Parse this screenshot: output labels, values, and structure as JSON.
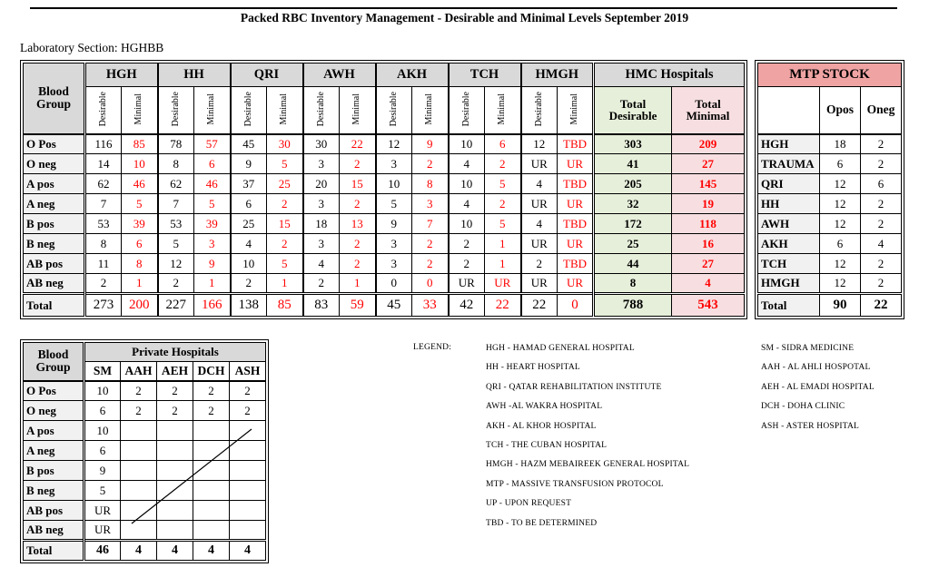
{
  "title": "Packed RBC Inventory Management - Desirable and Minimal Levels September 2019",
  "lab_section": "Laboratory Section: HGHBB",
  "colors": {
    "header_gray": "#d9d9d9",
    "row_label_gray": "#f1f1f1",
    "total_desirable_green": "#e6efda",
    "total_minimal_pink": "#f7dfe1",
    "mtp_header_salmon": "#efa3a3",
    "minimal_red": "#ff0000"
  },
  "main_table": {
    "corner_label": "Blood Group",
    "hospitals": [
      "HGH",
      "HH",
      "QRI",
      "AWH",
      "AKH",
      "TCH",
      "HMGH"
    ],
    "sub_headers": [
      "Desirable",
      "Minimal"
    ],
    "hmc_header": "HMC Hospitals",
    "hmc_columns": [
      "Total Desirable",
      "Total Minimal"
    ],
    "rows": [
      {
        "label": "O Pos",
        "values": [
          [
            "116",
            "85"
          ],
          [
            "78",
            "57"
          ],
          [
            "45",
            "30"
          ],
          [
            "30",
            "22"
          ],
          [
            "12",
            "9"
          ],
          [
            "10",
            "6"
          ],
          [
            "12",
            "TBD"
          ]
        ],
        "total_desirable": "303",
        "total_minimal": "209"
      },
      {
        "label": "O neg",
        "values": [
          [
            "14",
            "10"
          ],
          [
            "8",
            "6"
          ],
          [
            "9",
            "5"
          ],
          [
            "3",
            "2"
          ],
          [
            "3",
            "2"
          ],
          [
            "4",
            "2"
          ],
          [
            "UR",
            "UR"
          ]
        ],
        "total_desirable": "41",
        "total_minimal": "27"
      },
      {
        "label": "A pos",
        "values": [
          [
            "62",
            "46"
          ],
          [
            "62",
            "46"
          ],
          [
            "37",
            "25"
          ],
          [
            "20",
            "15"
          ],
          [
            "10",
            "8"
          ],
          [
            "10",
            "5"
          ],
          [
            "4",
            "TBD"
          ]
        ],
        "total_desirable": "205",
        "total_minimal": "145"
      },
      {
        "label": "A neg",
        "values": [
          [
            "7",
            "5"
          ],
          [
            "7",
            "5"
          ],
          [
            "6",
            "2"
          ],
          [
            "3",
            "2"
          ],
          [
            "5",
            "3"
          ],
          [
            "4",
            "2"
          ],
          [
            "UR",
            "UR"
          ]
        ],
        "total_desirable": "32",
        "total_minimal": "19"
      },
      {
        "label": "B pos",
        "values": [
          [
            "53",
            "39"
          ],
          [
            "53",
            "39"
          ],
          [
            "25",
            "15"
          ],
          [
            "18",
            "13"
          ],
          [
            "9",
            "7"
          ],
          [
            "10",
            "5"
          ],
          [
            "4",
            "TBD"
          ]
        ],
        "total_desirable": "172",
        "total_minimal": "118"
      },
      {
        "label": "B neg",
        "values": [
          [
            "8",
            "6"
          ],
          [
            "5",
            "3"
          ],
          [
            "4",
            "2"
          ],
          [
            "3",
            "2"
          ],
          [
            "3",
            "2"
          ],
          [
            "2",
            "1"
          ],
          [
            "UR",
            "UR"
          ]
        ],
        "total_desirable": "25",
        "total_minimal": "16"
      },
      {
        "label": "AB pos",
        "values": [
          [
            "11",
            "8"
          ],
          [
            "12",
            "9"
          ],
          [
            "10",
            "5"
          ],
          [
            "4",
            "2"
          ],
          [
            "3",
            "2"
          ],
          [
            "2",
            "1"
          ],
          [
            "2",
            "TBD"
          ]
        ],
        "total_desirable": "44",
        "total_minimal": "27"
      },
      {
        "label": "AB neg",
        "values": [
          [
            "2",
            "1"
          ],
          [
            "2",
            "1"
          ],
          [
            "2",
            "1"
          ],
          [
            "2",
            "1"
          ],
          [
            "0",
            "0"
          ],
          [
            "UR",
            "UR"
          ],
          [
            "UR",
            "UR"
          ]
        ],
        "total_desirable": "8",
        "total_minimal": "4"
      }
    ],
    "total_row": {
      "label": "Total",
      "values": [
        [
          "273",
          "200"
        ],
        [
          "227",
          "166"
        ],
        [
          "138",
          "85"
        ],
        [
          "83",
          "59"
        ],
        [
          "45",
          "33"
        ],
        [
          "42",
          "22"
        ],
        [
          "22",
          "0"
        ]
      ],
      "total_desirable": "788",
      "total_minimal": "543"
    }
  },
  "mtp_table": {
    "title": "MTP STOCK",
    "columns": [
      "Opos",
      "Oneg"
    ],
    "rows": [
      {
        "label": "HGH",
        "values": [
          "18",
          "2"
        ]
      },
      {
        "label": "TRAUMA",
        "values": [
          "6",
          "2"
        ]
      },
      {
        "label": "QRI",
        "values": [
          "12",
          "6"
        ]
      },
      {
        "label": "HH",
        "values": [
          "12",
          "2"
        ]
      },
      {
        "label": "AWH",
        "values": [
          "12",
          "2"
        ]
      },
      {
        "label": "AKH",
        "values": [
          "6",
          "4"
        ]
      },
      {
        "label": "TCH",
        "values": [
          "12",
          "2"
        ]
      },
      {
        "label": "HMGH",
        "values": [
          "12",
          "2"
        ]
      }
    ],
    "total_row": {
      "label": "Total",
      "values": [
        "90",
        "22"
      ]
    }
  },
  "private_table": {
    "corner_label": "Blood Group",
    "header": "Private Hospitals",
    "columns": [
      "SM",
      "AAH",
      "AEH",
      "DCH",
      "ASH"
    ],
    "rows": [
      {
        "label": "O Pos",
        "values": [
          "10",
          "2",
          "2",
          "2",
          "2"
        ]
      },
      {
        "label": "O neg",
        "values": [
          "6",
          "2",
          "2",
          "2",
          "2"
        ]
      },
      {
        "label": "A pos",
        "values": [
          "10",
          "",
          "",
          "",
          ""
        ]
      },
      {
        "label": "A neg",
        "values": [
          "6",
          "",
          "",
          "",
          ""
        ]
      },
      {
        "label": "B pos",
        "values": [
          "9",
          "",
          "",
          "",
          ""
        ]
      },
      {
        "label": "B neg",
        "values": [
          "5",
          "",
          "",
          "",
          ""
        ]
      },
      {
        "label": "AB pos",
        "values": [
          "UR",
          "",
          "",
          "",
          ""
        ]
      },
      {
        "label": "AB neg",
        "values": [
          "UR",
          "",
          "",
          "",
          ""
        ]
      }
    ],
    "total_row": {
      "label": "Total",
      "values": [
        "46",
        "4",
        "4",
        "4",
        "4"
      ]
    }
  },
  "legend": {
    "label": "LEGEND:",
    "col1": [
      "HGH - HAMAD GENERAL HOSPITAL",
      "HH - HEART HOSPITAL",
      "QRI - QATAR REHABILITATION INSTITUTE",
      "AWH -AL WAKRA HOSPITAL",
      "AKH - AL KHOR HOSPITAL",
      "TCH - THE CUBAN HOSPITAL",
      "HMGH - HAZM MEBAIREEK GENERAL HOSPITAL",
      "MTP - MASSIVE TRANSFUSION PROTOCOL",
      "UP - UPON REQUEST",
      "TBD - TO BE DETERMINED"
    ],
    "col2": [
      "SM - SIDRA MEDICINE",
      "AAH - AL AHLI HOSPOTAL",
      "AEH - AL EMADI HOSPITAL",
      "DCH - DOHA CLINIC",
      "ASH - ASTER HOSPITAL"
    ]
  }
}
